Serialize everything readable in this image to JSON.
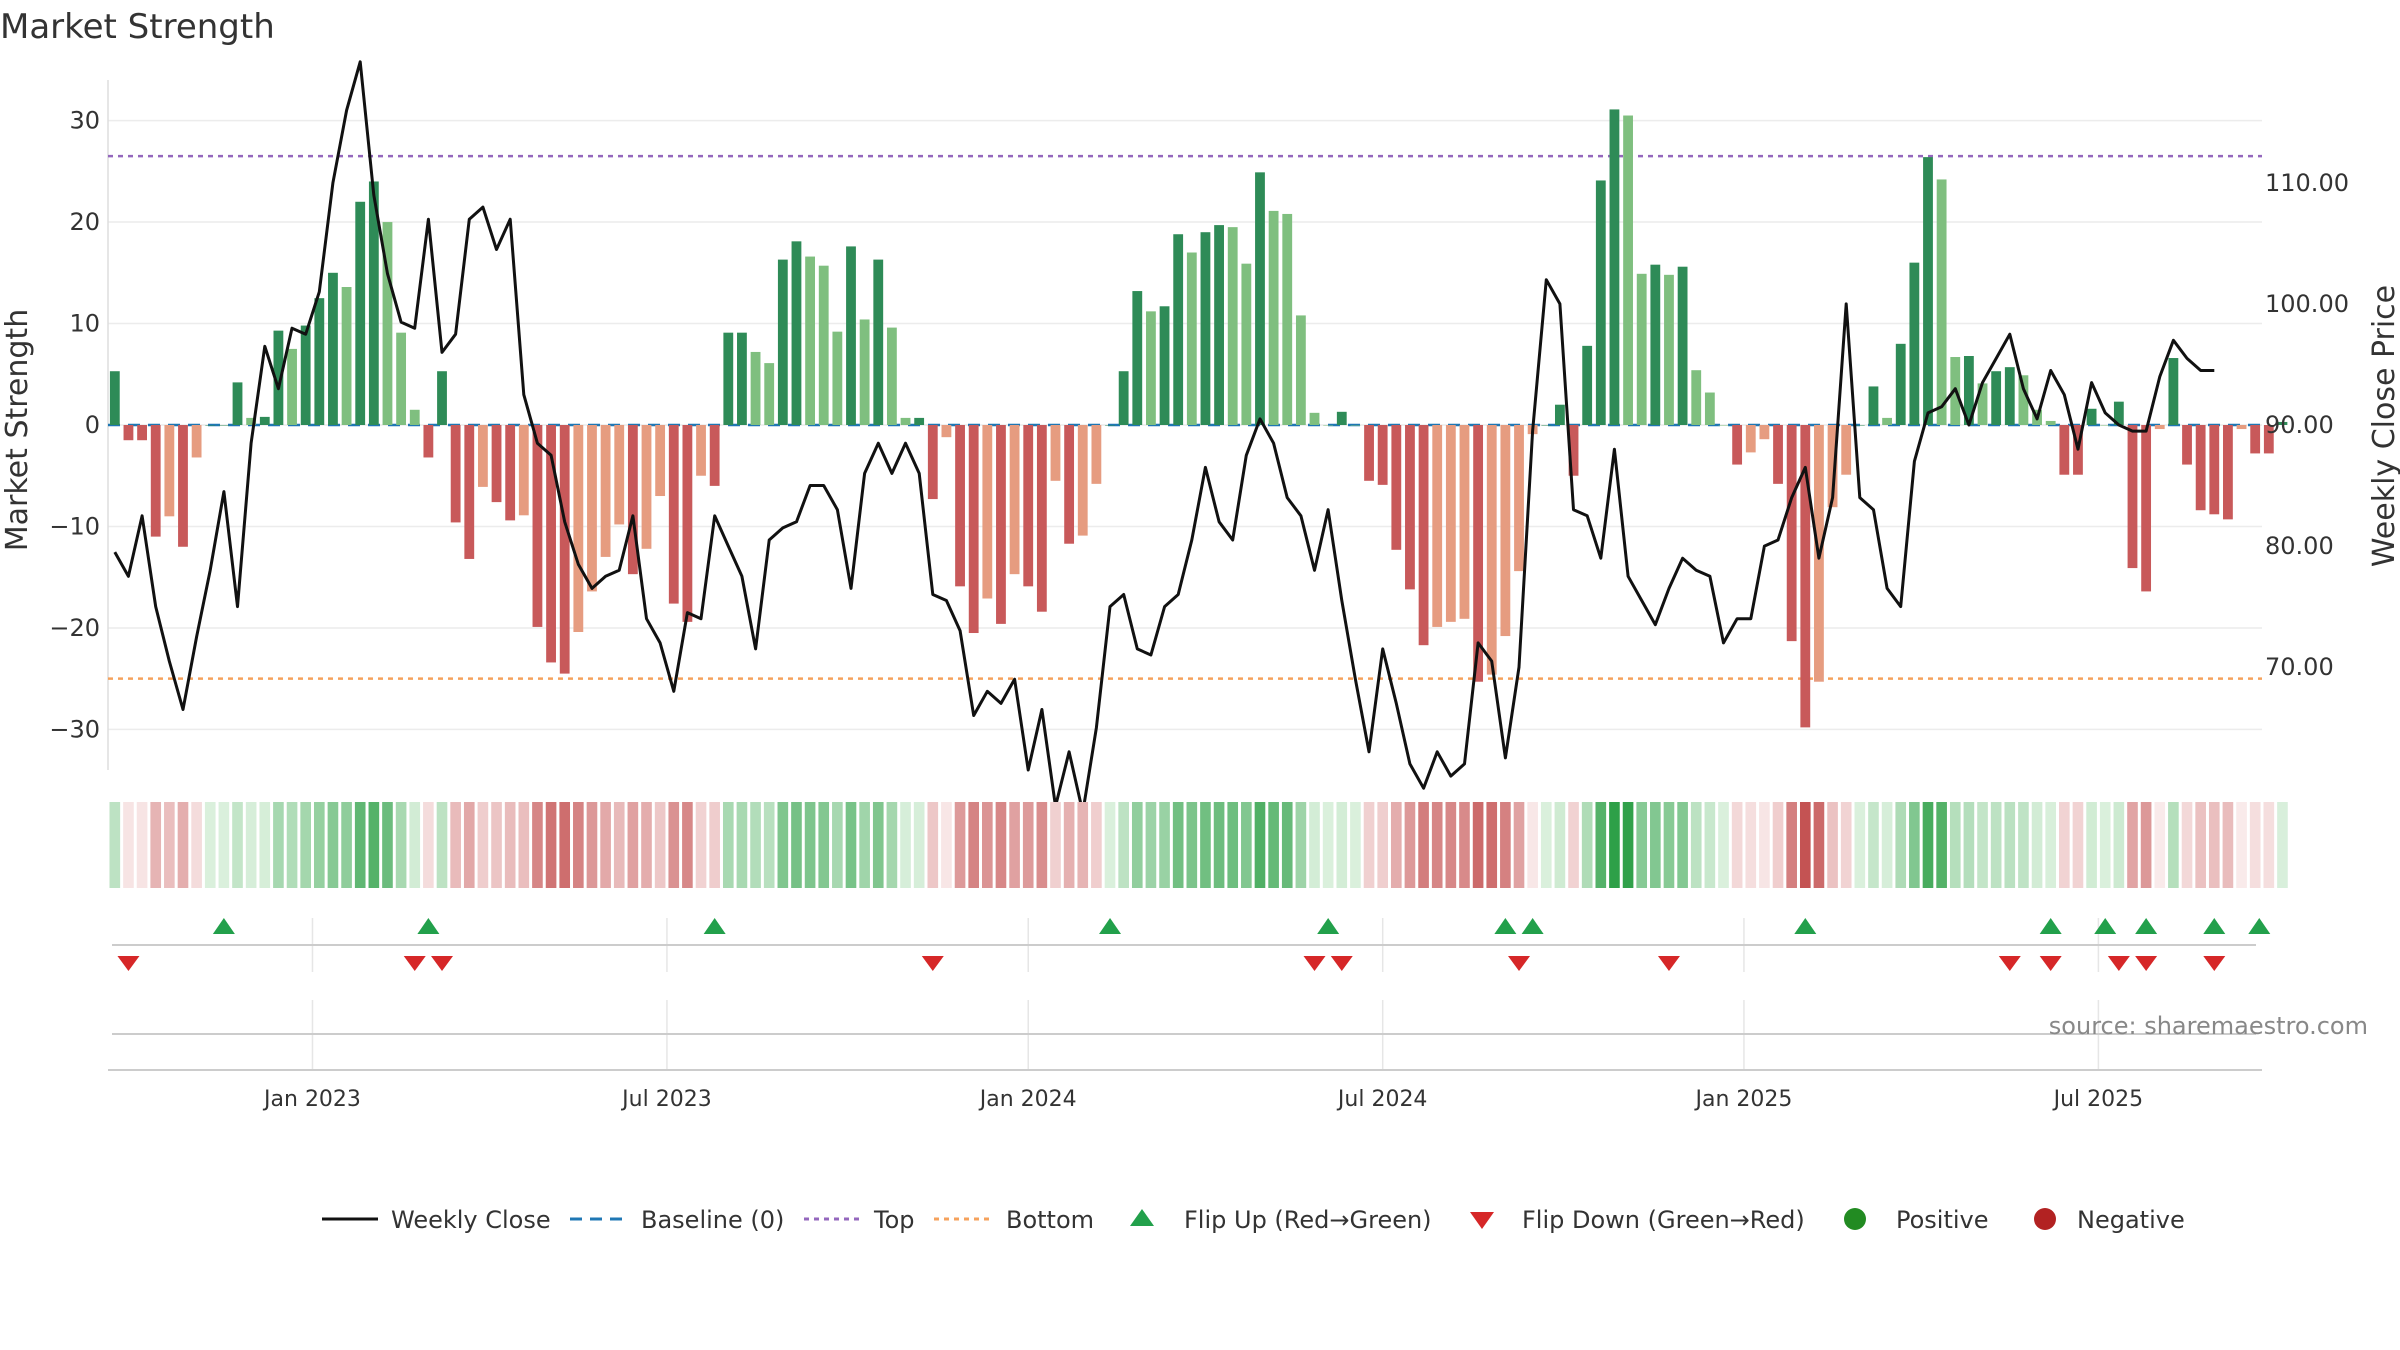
{
  "chart_data": {
    "type": "bar",
    "title": "Market Strength",
    "ylabel": "Market Strength",
    "y2label": "Weekly Close Price",
    "ylim": [
      -34,
      34
    ],
    "y2lim": [
      61.5,
      118.5
    ],
    "yticks": [
      {
        "v": 30,
        "label": "30"
      },
      {
        "v": 20,
        "label": "20"
      },
      {
        "v": 10,
        "label": "10"
      },
      {
        "v": 0,
        "label": "0"
      },
      {
        "v": -10,
        "label": "−10"
      },
      {
        "v": -20,
        "label": "−20"
      },
      {
        "v": -30,
        "label": "−30"
      }
    ],
    "y2ticks": [
      {
        "v": 110,
        "label": "110.00"
      },
      {
        "v": 100,
        "label": "100.00"
      },
      {
        "v": 90,
        "label": "90.00"
      },
      {
        "v": 80,
        "label": "80.00"
      },
      {
        "v": 70,
        "label": "70.00"
      }
    ],
    "xticks": [
      {
        "week": 14.5,
        "label": "Jan 2023"
      },
      {
        "week": 40.5,
        "label": "Jul 2023"
      },
      {
        "week": 67,
        "label": "Jan 2024"
      },
      {
        "week": 93,
        "label": "Jul 2024"
      },
      {
        "week": 119.5,
        "label": "Jan 2025"
      },
      {
        "week": 145.5,
        "label": "Jul 2025"
      }
    ],
    "x_range": [
      -0.5,
      157.5
    ],
    "top_level": 26.5,
    "bottom_level": -25,
    "baseline": 0,
    "strength": [
      5.3,
      -1.5,
      -1.5,
      -11,
      -9,
      -12,
      -3.2,
      0,
      0,
      4.2,
      0.7,
      0.8,
      9.3,
      7.5,
      9.8,
      12.5,
      15,
      13.6,
      22,
      24,
      20,
      9.1,
      1.5,
      -3.2,
      5.3,
      -9.6,
      -13.2,
      -6.1,
      -7.6,
      -9.4,
      -8.9,
      -19.9,
      -23.4,
      -24.5,
      -20.4,
      -16.4,
      -13,
      -9.8,
      -14.7,
      -12.2,
      -7,
      -17.6,
      -19.4,
      -5,
      -6,
      9.1,
      9.1,
      7.2,
      6.1,
      16.3,
      18.1,
      16.6,
      15.7,
      9.2,
      17.6,
      10.4,
      16.3,
      9.6,
      0.7,
      0.7,
      -7.3,
      -1.2,
      -15.9,
      -20.5,
      -17.1,
      -19.6,
      -14.7,
      -15.9,
      -18.4,
      -5.5,
      -11.7,
      -10.9,
      -5.8,
      0,
      5.3,
      13.2,
      11.2,
      11.7,
      18.8,
      17,
      19,
      19.7,
      19.5,
      15.9,
      24.9,
      21.1,
      20.8,
      10.8,
      1.2,
      0,
      1.3,
      0,
      -5.5,
      -5.9,
      -12.3,
      -16.2,
      -21.7,
      -19.9,
      -19.4,
      -19.1,
      -25.3,
      -24.6,
      -20.8,
      -14.4,
      -0.9,
      0,
      2,
      -5,
      7.8,
      24.1,
      31.1,
      30.5,
      14.9,
      15.8,
      14.8,
      15.6,
      5.4,
      3.2,
      0,
      -3.9,
      -2.7,
      -1.4,
      -5.8,
      -21.3,
      -29.8,
      -25.3,
      -8.1,
      -4.9,
      0,
      3.8,
      0.7,
      8,
      16,
      26.4,
      24.2,
      6.7,
      6.8,
      4.1,
      5.3,
      5.7,
      4.9,
      1.5,
      0.4,
      -4.9,
      -4.9,
      1.6,
      0,
      2.3,
      -14.1,
      -16.4,
      -0.4,
      6.6,
      -3.9,
      -8.4,
      -8.8,
      -9.3,
      -0.4,
      -2.8,
      -2.8,
      0.3
    ],
    "close": [
      79.5,
      77.5,
      82.5,
      75,
      70.5,
      66.5,
      72.5,
      78,
      84.5,
      75,
      88.5,
      96.5,
      93,
      98,
      97.5,
      101,
      110,
      116,
      120,
      109,
      102.5,
      98.5,
      98,
      107,
      96,
      97.5,
      107,
      108,
      104.5,
      107,
      92.5,
      88.5,
      87.5,
      82,
      78.5,
      76.5,
      77.5,
      78,
      82.5,
      74,
      72,
      68,
      74.5,
      74,
      82.5,
      80,
      77.5,
      71.5,
      80.5,
      81.5,
      82,
      85,
      85,
      83,
      76.5,
      86,
      88.5,
      86,
      88.5,
      86,
      76,
      75.5,
      73,
      66,
      68,
      67,
      69,
      61.5,
      66.5,
      58.5,
      63,
      58,
      65,
      75,
      76,
      71.5,
      71,
      75,
      76,
      80.5,
      86.5,
      82,
      80.5,
      87.5,
      90.5,
      88.5,
      84,
      82.5,
      78,
      83,
      75.5,
      69,
      63,
      71.5,
      67,
      62,
      60,
      63,
      61,
      62,
      72,
      70.5,
      62.5,
      70,
      89.5,
      102,
      100,
      83,
      82.5,
      79,
      88,
      77.5,
      75.5,
      73.5,
      76.5,
      79,
      78,
      77.5,
      72,
      74,
      74,
      80,
      80.5,
      84,
      86.5,
      79,
      84,
      100,
      84,
      83,
      76.5,
      75,
      87,
      91,
      91.5,
      93,
      90,
      93.5,
      95.5,
      97.5,
      93,
      90.5,
      94.5,
      92.5,
      88,
      93.5,
      91,
      90,
      89.5,
      89.5,
      94,
      97,
      95.5,
      94.5,
      94.5
    ],
    "flip_up_weeks": [
      8,
      23,
      44,
      73,
      89,
      102,
      104,
      124,
      142,
      146,
      149,
      154,
      157.3
    ],
    "flip_down_weeks": [
      1,
      22,
      24,
      60,
      88,
      90,
      103,
      114,
      139,
      142,
      147,
      149,
      154
    ],
    "colors": {
      "green_dark": "#2e8b57",
      "green_light": "#7fbf7f",
      "red_dark": "#c8595a",
      "red_light": "#e69c80",
      "line": "#111111",
      "top": "#9467bd",
      "bottom": "#f5a25d",
      "baseline": "#1f77b4",
      "flip_up": "#22a04b",
      "flip_down": "#d62728",
      "positive": "#228b22",
      "negative": "#b22222"
    },
    "legend": [
      "Weekly Close",
      "Baseline (0)",
      "Top",
      "Bottom",
      "Flip Up (Red→Green)",
      "Flip Down (Green→Red)",
      "Positive",
      "Negative"
    ],
    "source": "source: sharemaestro.com"
  }
}
